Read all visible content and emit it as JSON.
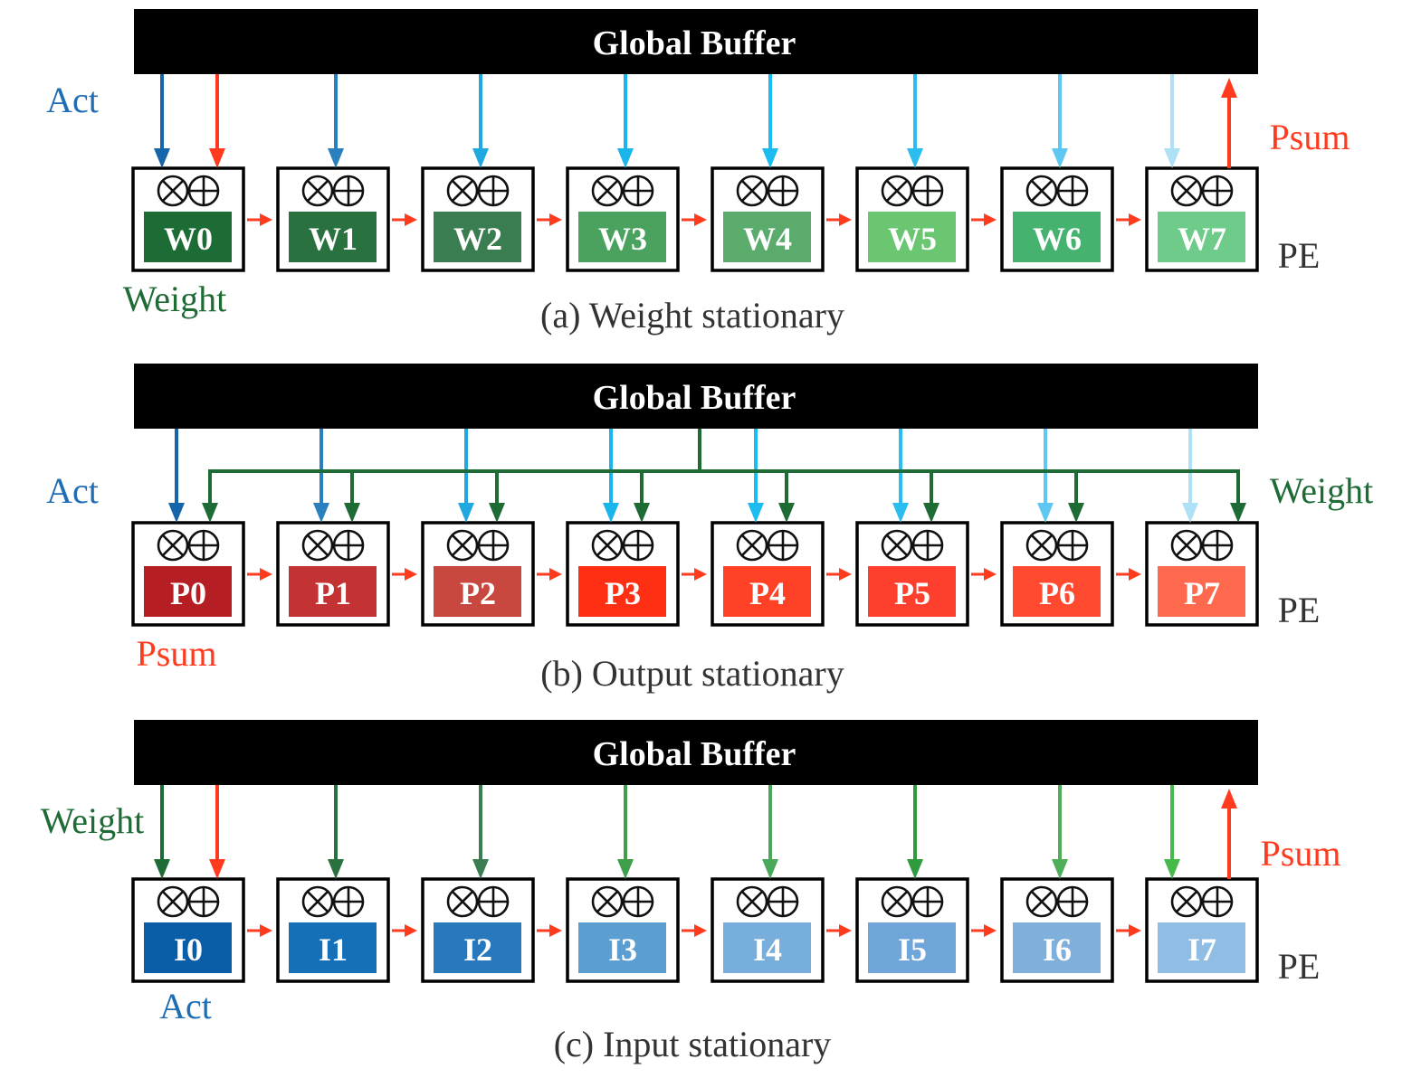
{
  "colors": {
    "act": "#1f6db3",
    "psum": "#ff3b1f",
    "weight": "#1f6b36",
    "buffer": "#000000",
    "pe_border": "#000000",
    "caption": "#333333",
    "pe_label": "#333333"
  },
  "panels": [
    {
      "id": "weight-stationary",
      "buffer_label": "Global Buffer",
      "caption": "(a) Weight stationary",
      "pe_label": "PE",
      "stationary_label": "Weight",
      "left_label": "Act",
      "right_label": "Psum",
      "cells": [
        {
          "label": "W0",
          "color": "#1d6b35"
        },
        {
          "label": "W1",
          "color": "#2a7140"
        },
        {
          "label": "W2",
          "color": "#3a7d50"
        },
        {
          "label": "W3",
          "color": "#4aa25e"
        },
        {
          "label": "W4",
          "color": "#5bab6d"
        },
        {
          "label": "W5",
          "color": "#6ac671"
        },
        {
          "label": "W6",
          "color": "#45b36f"
        },
        {
          "label": "W7",
          "color": "#6ecb8a"
        }
      ],
      "down_arrow_colors": [
        "#1565a8",
        "#2a7fbf",
        "#1fa9e0",
        "#1ab5ea",
        "#1bbcf0",
        "#2bbdf0",
        "#5ec8f2",
        "#aee0f6"
      ]
    },
    {
      "id": "output-stationary",
      "buffer_label": "Global Buffer",
      "caption": "(b) Output stationary",
      "pe_label": "PE",
      "stationary_label": "Psum",
      "left_label": "Act",
      "right_label": "Weight",
      "cells": [
        {
          "label": "P0",
          "color": "#b51f24"
        },
        {
          "label": "P1",
          "color": "#c43333"
        },
        {
          "label": "P2",
          "color": "#c8473f"
        },
        {
          "label": "P3",
          "color": "#ff2f14"
        },
        {
          "label": "P4",
          "color": "#ff4126"
        },
        {
          "label": "P5",
          "color": "#ff3f2e"
        },
        {
          "label": "P6",
          "color": "#ff4a30"
        },
        {
          "label": "P7",
          "color": "#ff6a4f"
        }
      ],
      "down_arrow_colors": [
        "#1565a8",
        "#2a7fbf",
        "#1fa9e0",
        "#1ab5ea",
        "#1bbcf0",
        "#2bbdf0",
        "#5ec8f2",
        "#aee0f6"
      ]
    },
    {
      "id": "input-stationary",
      "buffer_label": "Global Buffer",
      "caption": "(c) Input stationary",
      "pe_label": "PE",
      "stationary_label": "Act",
      "left_label": "Weight",
      "right_label": "Psum",
      "cells": [
        {
          "label": "I0",
          "color": "#0a5ea8"
        },
        {
          "label": "I1",
          "color": "#1570b8"
        },
        {
          "label": "I2",
          "color": "#2878be"
        },
        {
          "label": "I3",
          "color": "#5b9fd2"
        },
        {
          "label": "I4",
          "color": "#78aedb"
        },
        {
          "label": "I5",
          "color": "#6fa5d8"
        },
        {
          "label": "I6",
          "color": "#7fb0db"
        },
        {
          "label": "I7",
          "color": "#8fbde3"
        }
      ],
      "down_arrow_colors": [
        "#1d6b35",
        "#2a7140",
        "#3a7d50",
        "#3f9e4a",
        "#4aa85a",
        "#2f9a3e",
        "#4fae5a",
        "#45b94a"
      ]
    }
  ]
}
